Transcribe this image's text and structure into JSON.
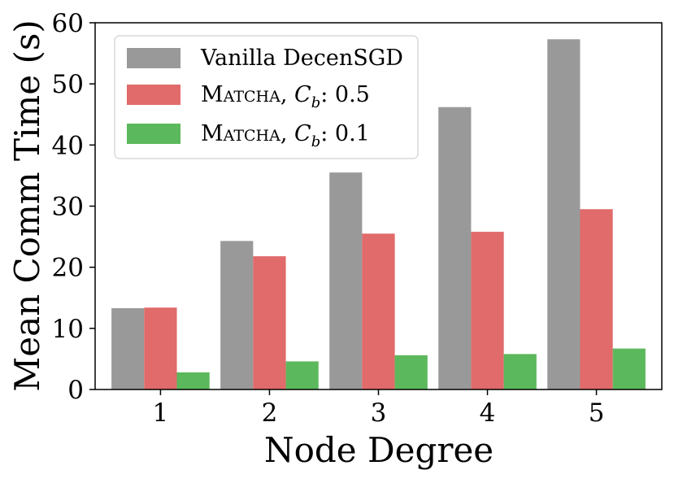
{
  "chart_data": {
    "type": "bar",
    "title": "",
    "xlabel": "Node Degree",
    "ylabel": "Mean Comm Time (s)",
    "categories": [
      "1",
      "2",
      "3",
      "4",
      "5"
    ],
    "ylim": [
      0,
      60
    ],
    "yticks": [
      0,
      10,
      20,
      30,
      40,
      50,
      60
    ],
    "grid": false,
    "legend_position": "top-left",
    "series": [
      {
        "name": "Vanilla DecenSGD",
        "color": "#999999",
        "values": [
          13.3,
          24.3,
          35.5,
          46.2,
          57.3
        ]
      },
      {
        "name": "Matcha",
        "param": "0.5",
        "color": "#e16a6a",
        "values": [
          13.4,
          21.8,
          25.5,
          25.8,
          29.5
        ]
      },
      {
        "name": "Matcha",
        "param": "0.1",
        "color": "#5cb85c",
        "values": [
          2.8,
          4.6,
          5.6,
          5.8,
          6.7
        ]
      }
    ],
    "legend_param_symbol": "C",
    "legend_param_subscript": "b"
  }
}
